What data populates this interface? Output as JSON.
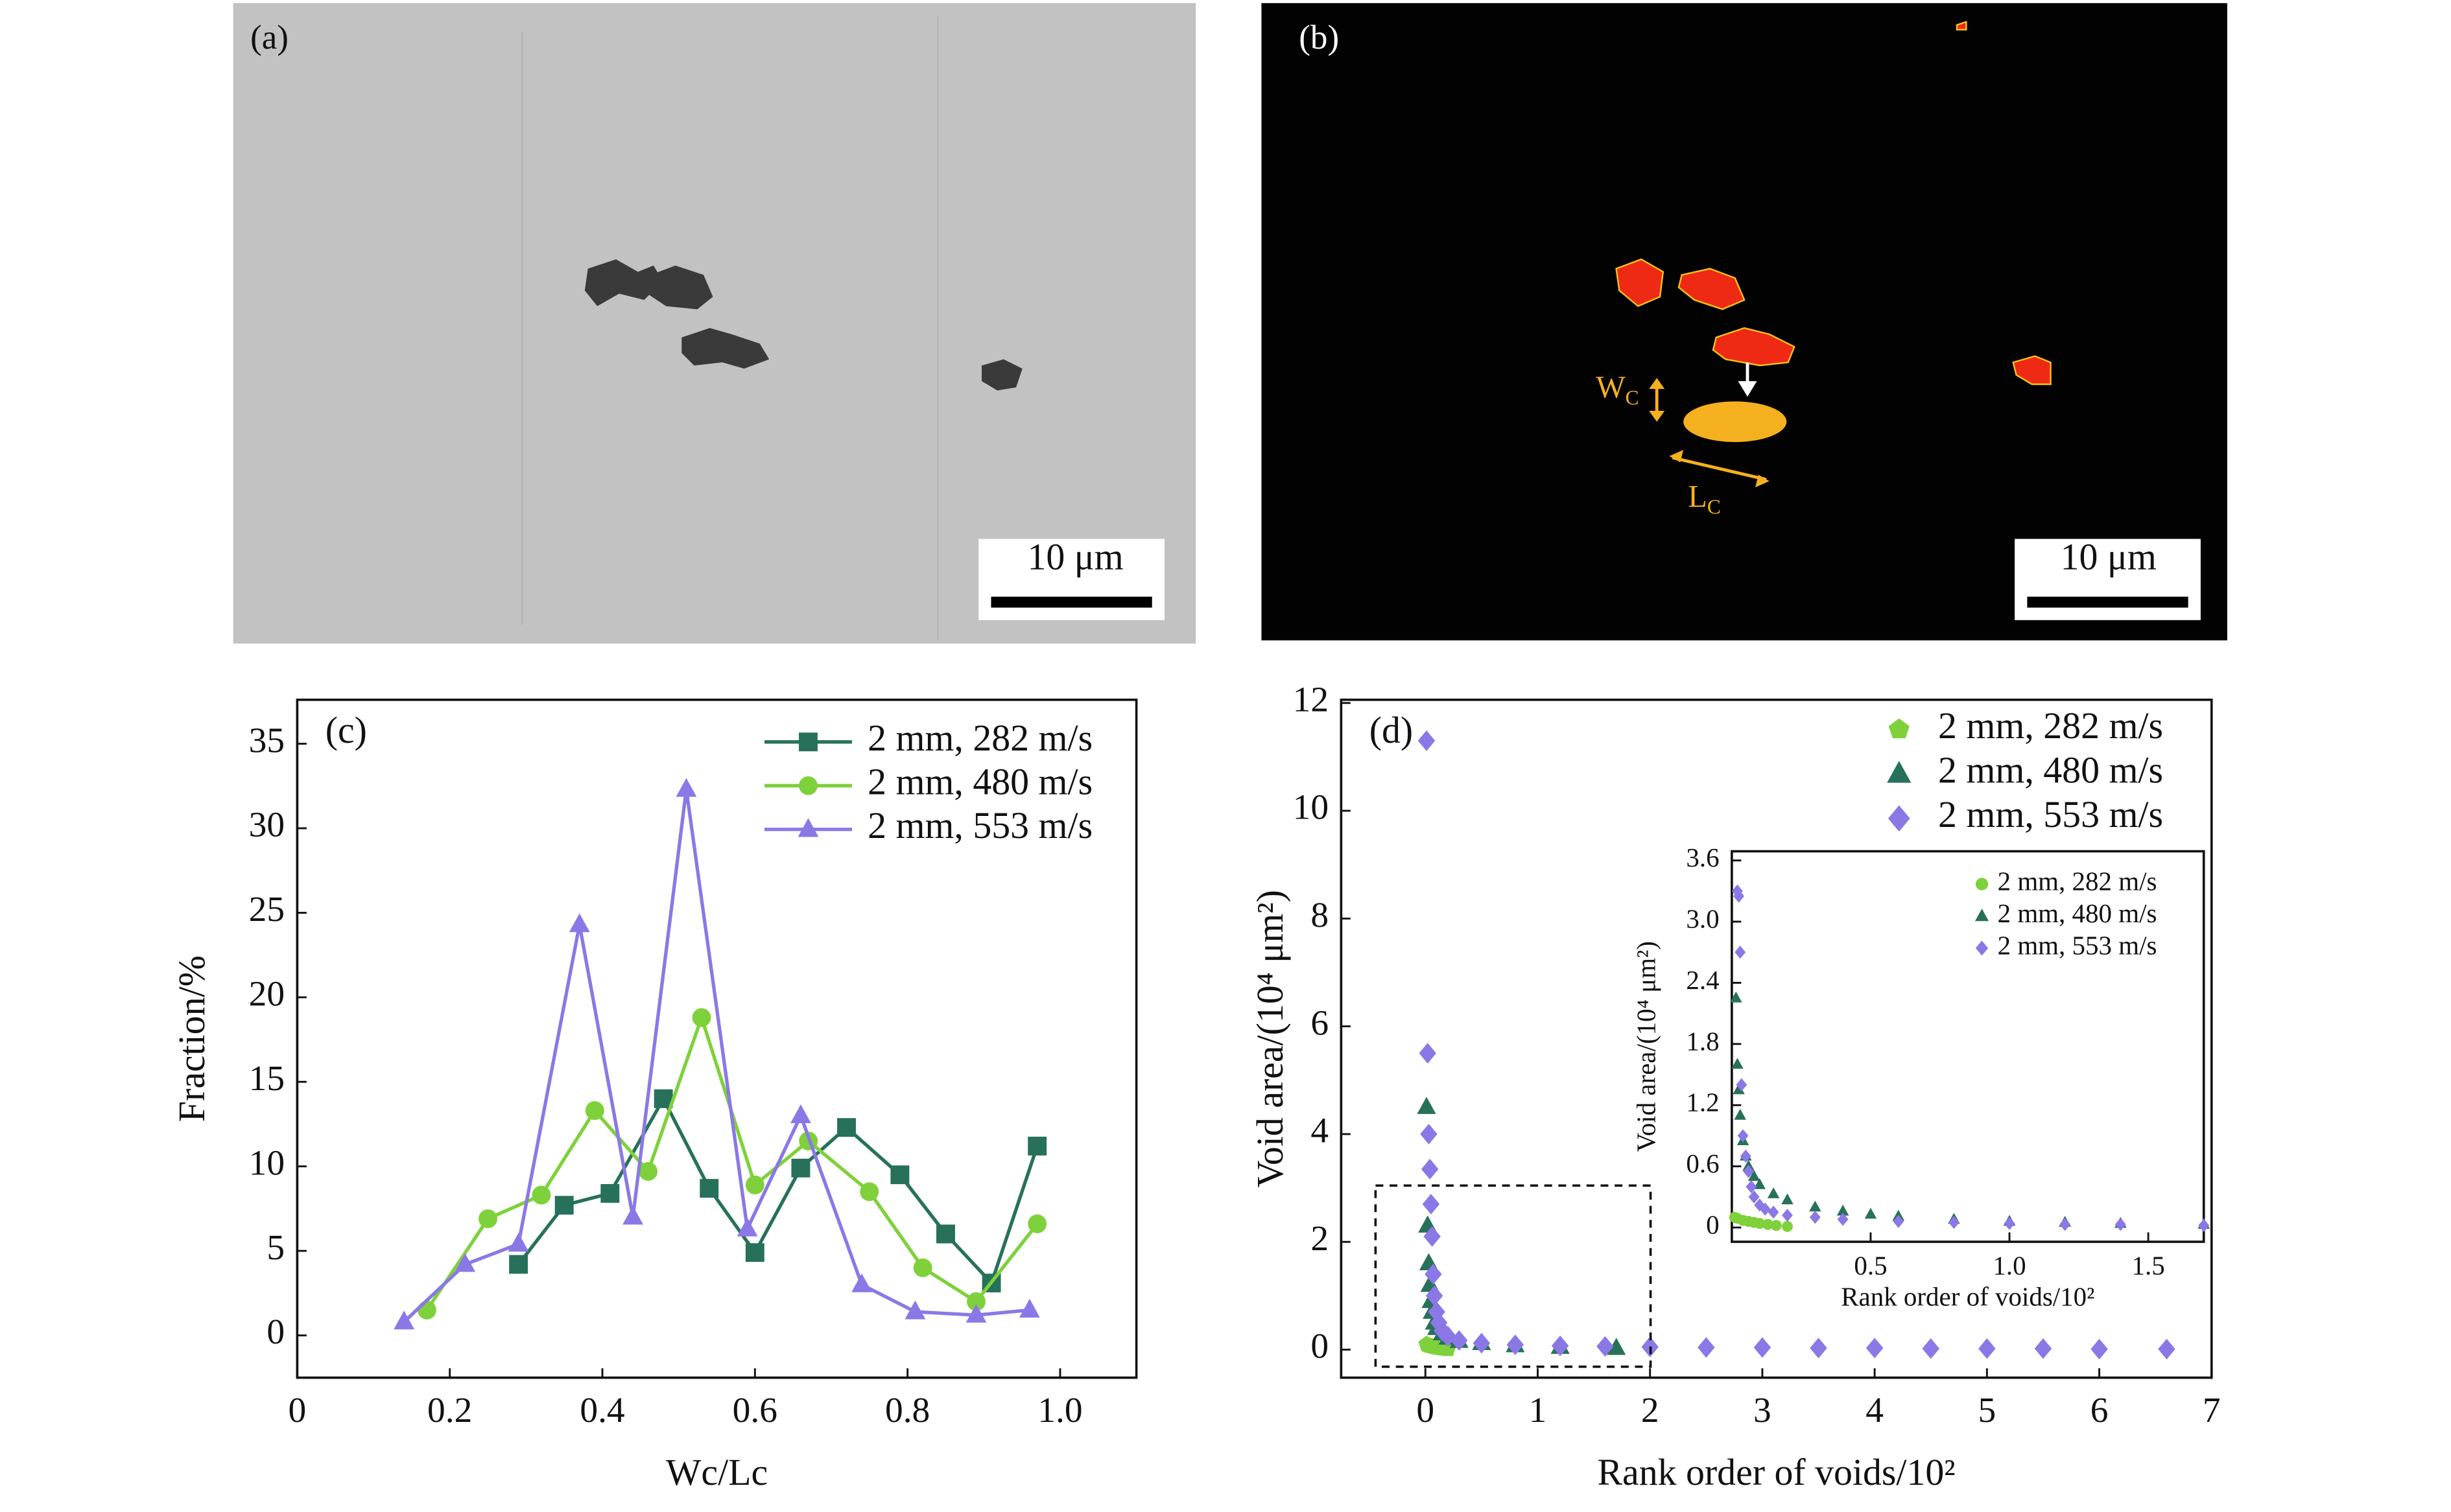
{
  "images": [
    {
      "label": "(a)",
      "scale_bar": "10 μm"
    },
    {
      "label": "(b)",
      "scale_bar": "10 μm",
      "width_label": "W",
      "width_sub": "C",
      "length_label": "L",
      "length_sub": "C"
    }
  ],
  "chart_data": [
    {
      "type": "line",
      "label": "(c)",
      "xlabel": "Wc/Lc",
      "ylabel": "Fraction/%",
      "xlim": [
        0,
        1.1
      ],
      "xticks": [
        0,
        0.2,
        0.4,
        0.6,
        0.8,
        {
          "value": 1,
          "label": "1.0"
        }
      ],
      "ylim": [
        -2.5,
        37.6
      ],
      "yticks": [
        0,
        5,
        10,
        15,
        20,
        25,
        30,
        35
      ],
      "grid": false,
      "legend": "upper right",
      "series": [
        {
          "name": "2 mm, 282 m/s",
          "color": "#27715a",
          "marker": "square",
          "x": [
            0.29,
            0.35,
            0.41,
            0.48,
            0.54,
            0.6,
            0.66,
            0.72,
            0.79,
            0.85,
            0.91,
            0.97
          ],
          "values": [
            4.2,
            7.7,
            8.4,
            14,
            8.7,
            4.9,
            9.9,
            12.3,
            9.5,
            6,
            3.1,
            11.2
          ]
        },
        {
          "name": "2 mm, 480 m/s",
          "color": "#7ed13a",
          "marker": "circle",
          "x": [
            0.17,
            0.25,
            0.32,
            0.39,
            0.46,
            0.53,
            0.6,
            0.67,
            0.75,
            0.82,
            0.89,
            0.97
          ],
          "values": [
            1.5,
            6.9,
            8.3,
            13.3,
            9.7,
            18.8,
            8.9,
            11.5,
            8.5,
            4,
            2,
            6.6
          ]
        },
        {
          "name": "2 mm, 553 m/s",
          "color": "#8b78e6",
          "marker": "triangle",
          "x": [
            0.14,
            0.22,
            0.29,
            0.37,
            0.44,
            0.51,
            0.59,
            0.66,
            0.74,
            0.81,
            0.89,
            0.96
          ],
          "values": [
            0.8,
            4.2,
            5.4,
            24.3,
            7,
            32.3,
            6.3,
            13,
            3,
            1.4,
            1.2,
            1.5
          ]
        }
      ]
    },
    {
      "type": "scatter",
      "label": "(d)",
      "xlabel": "Rank order of voids/10²",
      "ylabel": "Void area/(10⁴ μm²)",
      "xlim": [
        -0.75,
        7
      ],
      "xticks": [
        0,
        1,
        2,
        3,
        4,
        5,
        6,
        7
      ],
      "ylim": [
        -0.52,
        12.06
      ],
      "yticks": [
        0,
        2,
        4,
        6,
        8,
        10,
        12
      ],
      "grid": false,
      "legend": "upper right",
      "series": [
        {
          "name": "2 mm, 282 m/s",
          "color": "#7ed13a",
          "marker": "pentagon",
          "x": [
            0.01,
            0.02,
            0.04,
            0.06,
            0.08,
            0.1,
            0.13,
            0.16,
            0.2
          ],
          "values": [
            0.1,
            0.09,
            0.07,
            0.06,
            0.05,
            0.04,
            0.03,
            0.02,
            0.01
          ]
        },
        {
          "name": "2 mm, 480 m/s",
          "color": "#27715a",
          "marker": "triangle",
          "x": [
            0.01,
            0.02,
            0.03,
            0.04,
            0.05,
            0.06,
            0.08,
            0.1,
            0.15,
            0.2,
            0.3,
            0.5,
            0.8,
            1.2,
            1.7
          ],
          "values": [
            4.5,
            2.3,
            1.6,
            1.2,
            0.9,
            0.7,
            0.5,
            0.4,
            0.3,
            0.22,
            0.16,
            0.12,
            0.08,
            0.05,
            0.03
          ]
        },
        {
          "name": "2 mm, 553 m/s",
          "color": "#8b78e6",
          "marker": "diamond",
          "x": [
            0.01,
            0.02,
            0.03,
            0.04,
            0.05,
            0.06,
            0.07,
            0.08,
            0.1,
            0.12,
            0.15,
            0.2,
            0.3,
            0.5,
            0.8,
            1.2,
            1.6,
            2,
            2.5,
            3,
            3.5,
            4,
            4.5,
            5,
            5.5,
            6,
            6.6
          ],
          "values": [
            11.3,
            5.5,
            4,
            3.35,
            2.7,
            2.1,
            1.4,
            1,
            0.7,
            0.5,
            0.35,
            0.25,
            0.17,
            0.12,
            0.09,
            0.07,
            0.06,
            0.05,
            0.04,
            0.04,
            0.03,
            0.03,
            0.02,
            0.02,
            0.02,
            0.01,
            0.01
          ]
        }
      ]
    },
    {
      "type": "scatter",
      "xlabel": "Rank order of voids/10²",
      "ylabel": "Void area/(10⁴ μm²)",
      "xlim": [
        0,
        1.7
      ],
      "xticks": [
        0.5,
        {
          "value": 1,
          "label": "1.0"
        },
        1.5
      ],
      "ylim": [
        -0.14,
        3.69
      ],
      "yticks": [
        0,
        0.6,
        1.2,
        1.8,
        2.4,
        {
          "value": 3,
          "label": "3.0"
        },
        3.6
      ],
      "grid": false,
      "legend": "upper right",
      "series": [
        {
          "name": "2 mm, 282 m/s",
          "color": "#7ed13a",
          "marker": "circle",
          "x": [
            0.01,
            0.02,
            0.04,
            0.06,
            0.08,
            0.1,
            0.13,
            0.16,
            0.2
          ],
          "values": [
            0.1,
            0.09,
            0.07,
            0.06,
            0.05,
            0.04,
            0.03,
            0.02,
            0.01
          ]
        },
        {
          "name": "2 mm, 480 m/s",
          "color": "#27715a",
          "marker": "triangle",
          "x": [
            0.015,
            0.02,
            0.025,
            0.03,
            0.04,
            0.05,
            0.06,
            0.08,
            0.1,
            0.15,
            0.2,
            0.3,
            0.4,
            0.5,
            0.6,
            0.8,
            1,
            1.2,
            1.4,
            1.7
          ],
          "values": [
            2.25,
            1.6,
            1.35,
            1.1,
            0.85,
            0.7,
            0.6,
            0.5,
            0.42,
            0.33,
            0.27,
            0.2,
            0.16,
            0.13,
            0.11,
            0.08,
            0.06,
            0.05,
            0.04,
            0.03
          ]
        },
        {
          "name": "2 mm, 553 m/s",
          "color": "#8b78e6",
          "marker": "diamond",
          "x": [
            0.02,
            0.025,
            0.03,
            0.035,
            0.04,
            0.05,
            0.06,
            0.07,
            0.08,
            0.1,
            0.12,
            0.15,
            0.2,
            0.3,
            0.4,
            0.6,
            0.8,
            1,
            1.2,
            1.4,
            1.7
          ],
          "values": [
            3.3,
            3.25,
            2.7,
            1.4,
            0.9,
            0.7,
            0.55,
            0.4,
            0.3,
            0.22,
            0.18,
            0.15,
            0.12,
            0.1,
            0.08,
            0.06,
            0.05,
            0.04,
            0.03,
            0.03,
            0.02
          ]
        }
      ]
    }
  ]
}
